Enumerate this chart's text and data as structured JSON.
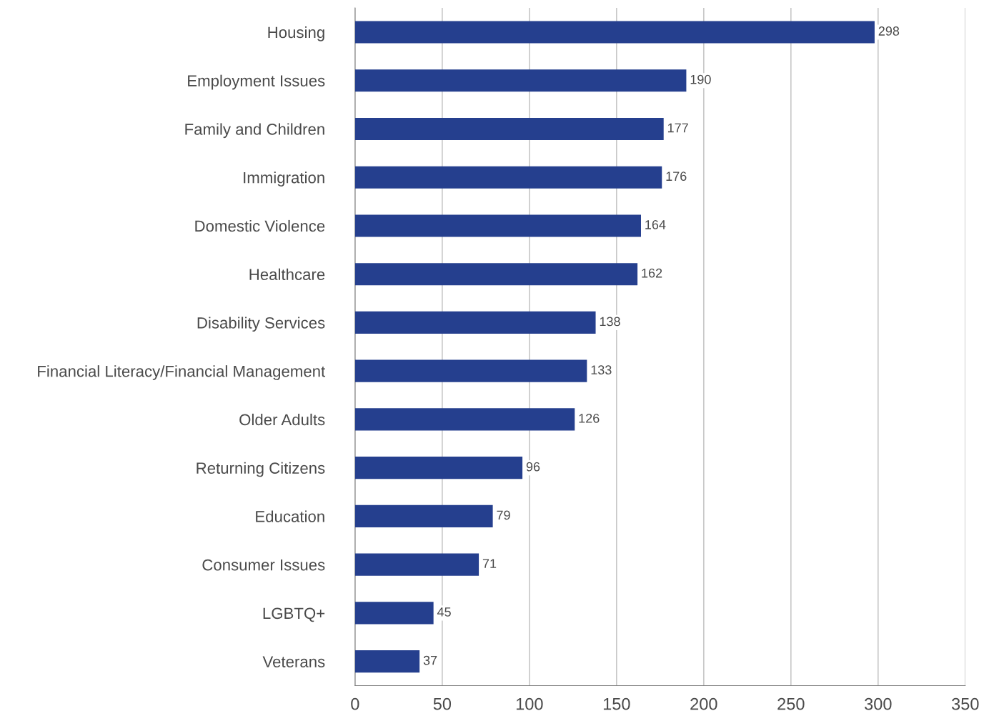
{
  "chart_data": {
    "type": "bar",
    "orientation": "horizontal",
    "categories": [
      "Housing",
      "Employment Issues",
      "Family and Children",
      "Immigration",
      "Domestic Violence",
      "Healthcare",
      "Disability Services",
      "Financial Literacy/Financial Management",
      "Older Adults",
      "Returning Citizens",
      "Education",
      "Consumer Issues",
      "LGBTQ+",
      "Veterans"
    ],
    "values": [
      298,
      190,
      177,
      176,
      164,
      162,
      138,
      133,
      126,
      96,
      79,
      71,
      45,
      37
    ],
    "color": "#253f8e",
    "xlim": [
      0,
      350
    ],
    "xticks": [
      0,
      50,
      100,
      150,
      200,
      250,
      300,
      350
    ],
    "grid": "x",
    "data_labels": true
  }
}
